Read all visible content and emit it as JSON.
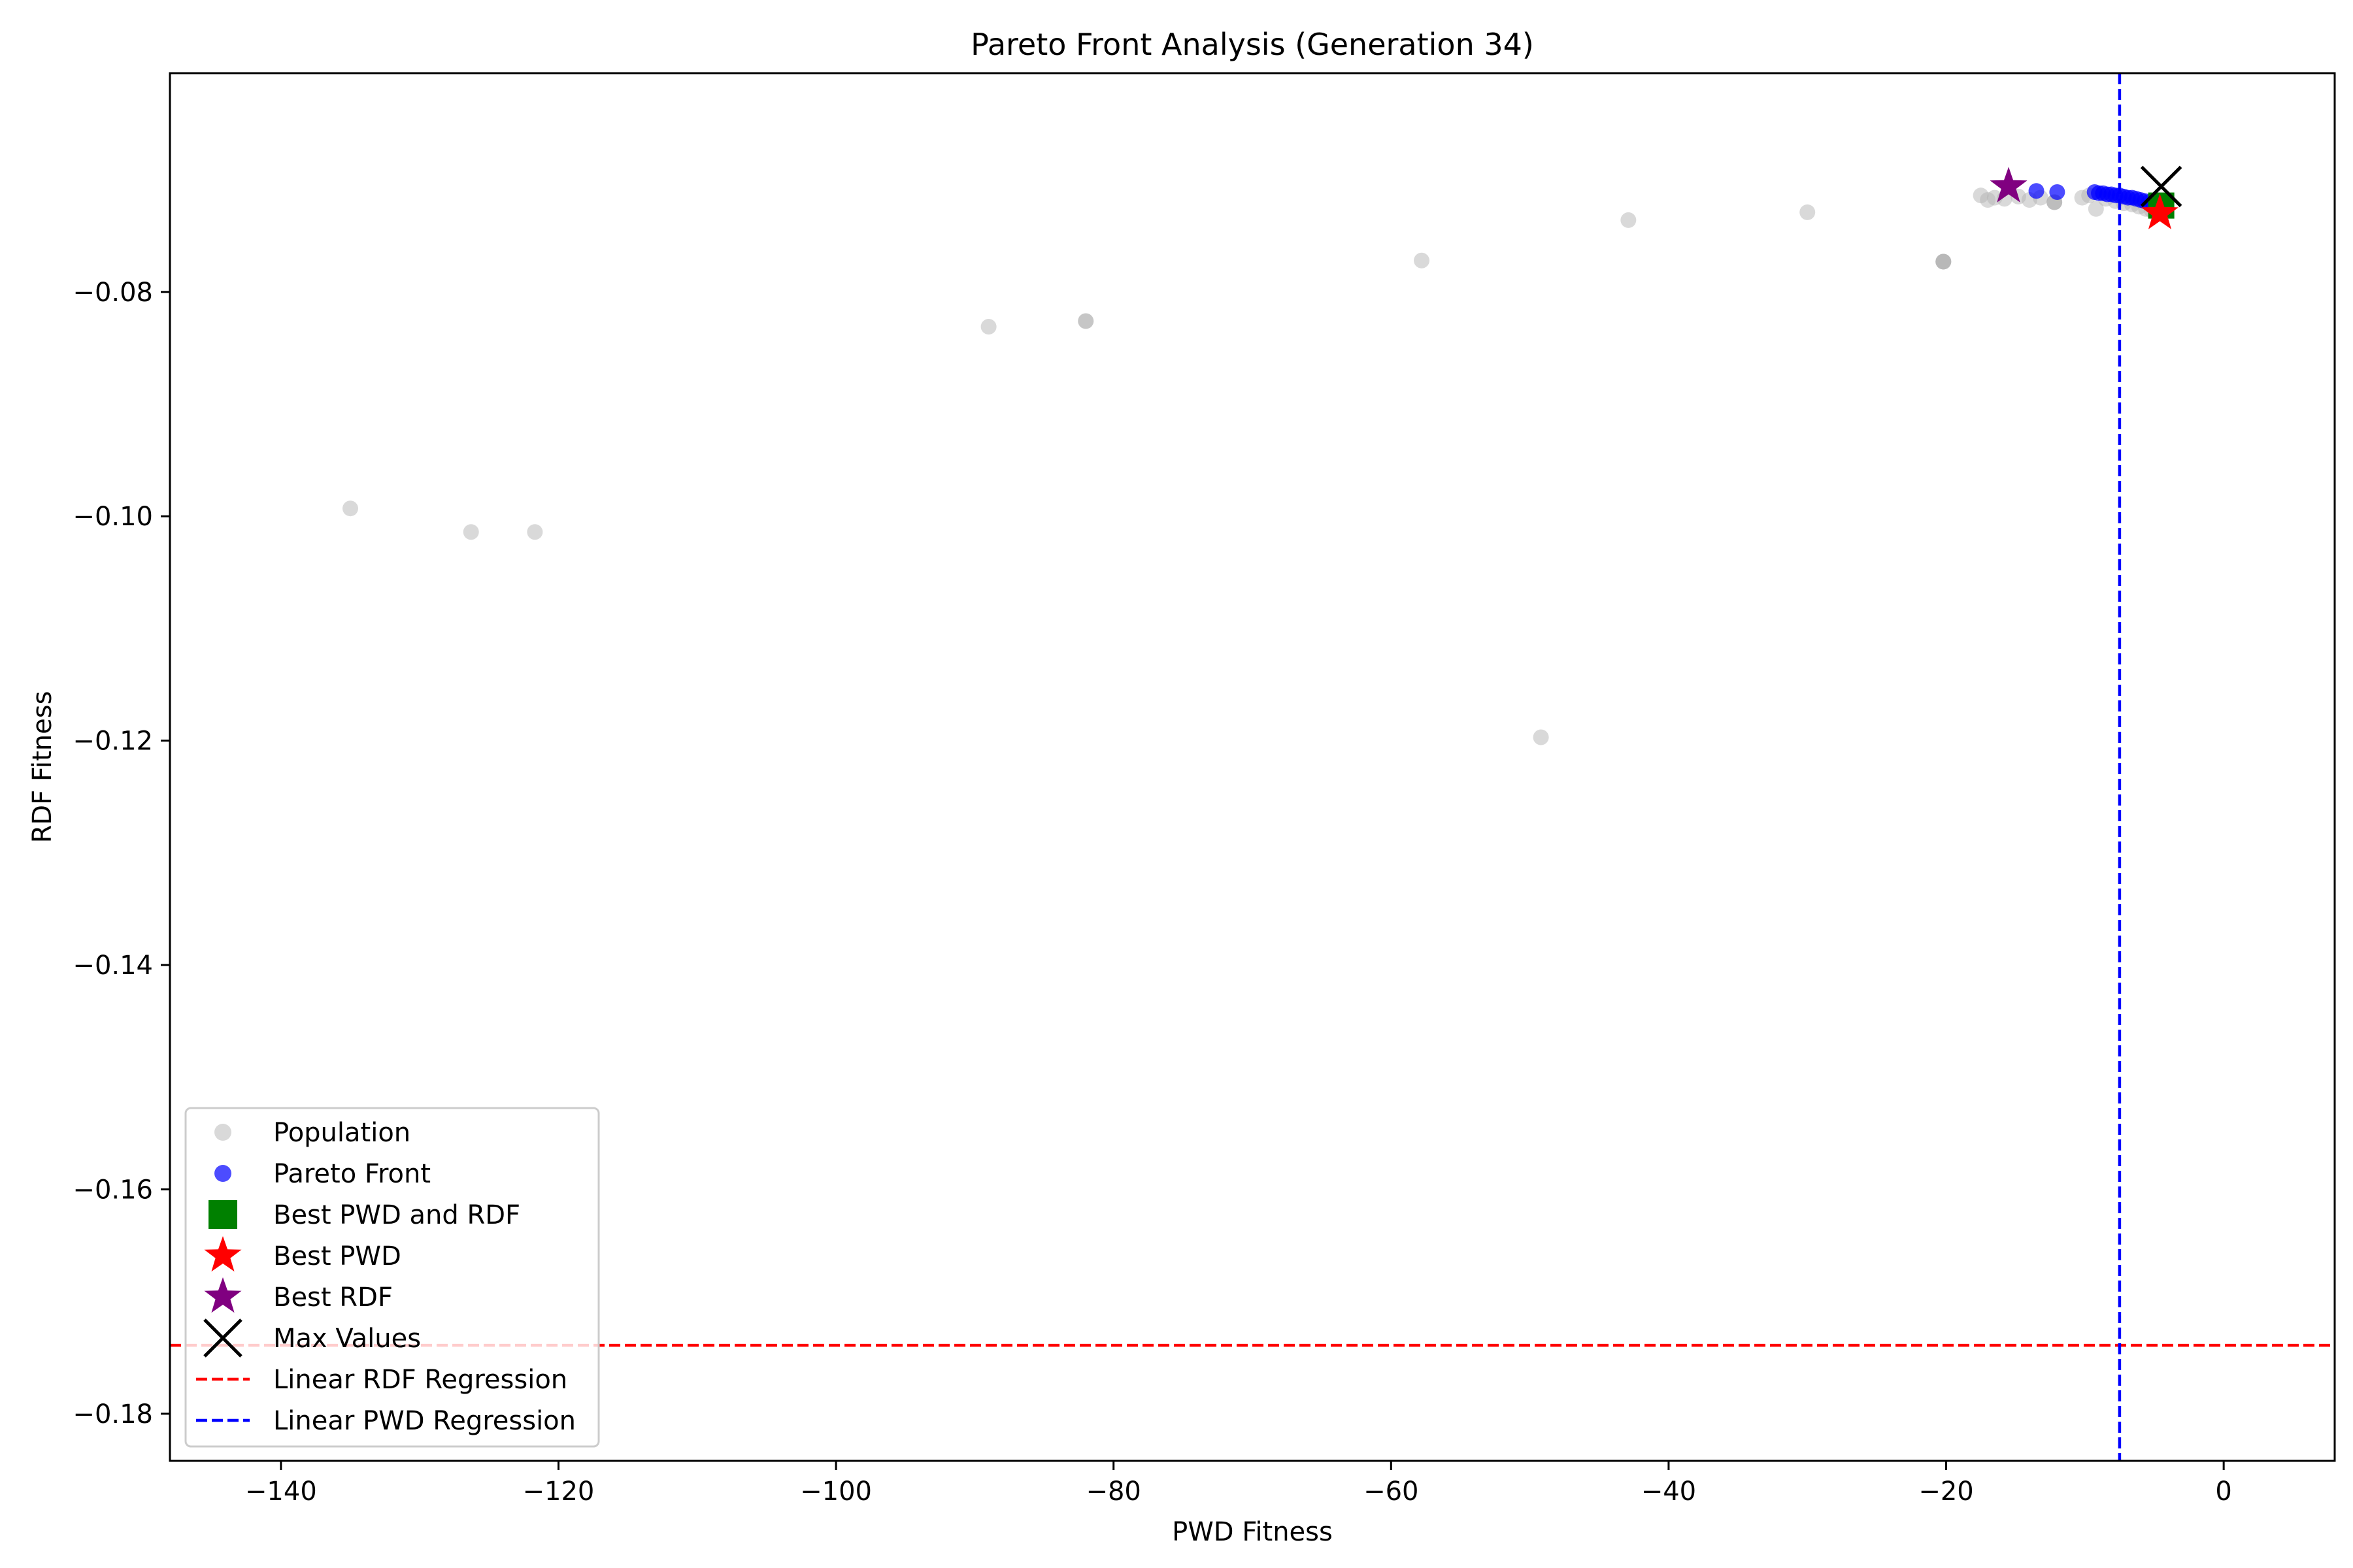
{
  "chart_data": {
    "type": "scatter",
    "title": "Pareto Front Analysis (Generation 34)",
    "xlabel": "PWD Fitness",
    "ylabel": "RDF Fitness",
    "xlim": [
      -148.0,
      8.0
    ],
    "ylim": [
      -0.1842,
      -0.0605
    ],
    "xticks": [
      -140,
      -120,
      -100,
      -80,
      -60,
      -40,
      -20,
      0
    ],
    "xtick_labels": [
      "−140",
      "−120",
      "−100",
      "−80",
      "−60",
      "−40",
      "−20",
      "0"
    ],
    "yticks": [
      -0.18,
      -0.16,
      -0.14,
      -0.12,
      -0.1,
      -0.08
    ],
    "ytick_labels": [
      "−0.18",
      "−0.16",
      "−0.14",
      "−0.12",
      "−0.10",
      "−0.08"
    ],
    "grid": false,
    "legend_position": "lower-left",
    "series": [
      {
        "name": "Population",
        "kind": "scatter",
        "marker": "circle",
        "color": "#b3b3b3",
        "opacity": 0.5,
        "points": [
          [
            -135.0,
            -0.0993
          ],
          [
            -126.3,
            -0.1014
          ],
          [
            -121.7,
            -0.1014
          ],
          [
            -89.0,
            -0.0831
          ],
          [
            -82.0,
            -0.0826
          ],
          [
            -82.0,
            -0.0826
          ],
          [
            -57.8,
            -0.0772
          ],
          [
            -49.2,
            -0.1197
          ],
          [
            -42.9,
            -0.0736
          ],
          [
            -30.0,
            -0.0729
          ],
          [
            -20.2,
            -0.0773
          ],
          [
            -20.2,
            -0.0773
          ],
          [
            -20.2,
            -0.0773
          ],
          [
            -20.2,
            -0.0773
          ],
          [
            -17.5,
            -0.0714
          ],
          [
            -17.0,
            -0.0718
          ],
          [
            -16.5,
            -0.0716
          ],
          [
            -15.8,
            -0.0717
          ],
          [
            -14.8,
            -0.0715
          ],
          [
            -14.0,
            -0.0718
          ],
          [
            -13.2,
            -0.0716
          ],
          [
            -12.2,
            -0.072
          ],
          [
            -12.2,
            -0.072
          ],
          [
            -12.2,
            -0.072
          ],
          [
            -10.2,
            -0.0716
          ],
          [
            -9.7,
            -0.0714
          ],
          [
            -9.2,
            -0.0726
          ],
          [
            -8.5,
            -0.0717
          ],
          [
            -7.8,
            -0.0719
          ],
          [
            -7.2,
            -0.0721
          ],
          [
            -6.6,
            -0.0722
          ],
          [
            -6.1,
            -0.0724
          ],
          [
            -5.6,
            -0.0726
          ],
          [
            -5.2,
            -0.0727
          ],
          [
            -4.8,
            -0.0727
          ],
          [
            -4.5,
            -0.0725
          ]
        ]
      },
      {
        "name": "Pareto Front",
        "kind": "scatter",
        "marker": "circle",
        "color": "#0000ff",
        "opacity": 0.7,
        "points": [
          [
            -15.5,
            -0.0706
          ],
          [
            -13.5,
            -0.071
          ],
          [
            -12.0,
            -0.0711
          ],
          [
            -9.3,
            -0.0711
          ],
          [
            -9.0,
            -0.0712
          ],
          [
            -8.7,
            -0.0712
          ],
          [
            -8.4,
            -0.0713
          ],
          [
            -8.1,
            -0.0713
          ],
          [
            -7.8,
            -0.0714
          ],
          [
            -7.5,
            -0.0714
          ],
          [
            -7.2,
            -0.0715
          ],
          [
            -6.9,
            -0.0716
          ],
          [
            -6.6,
            -0.0716
          ],
          [
            -6.3,
            -0.0717
          ],
          [
            -6.0,
            -0.0718
          ],
          [
            -5.7,
            -0.0719
          ],
          [
            -5.4,
            -0.072
          ],
          [
            -5.1,
            -0.0721
          ],
          [
            -4.8,
            -0.0723
          ],
          [
            -4.6,
            -0.0725
          ]
        ]
      },
      {
        "name": "Best PWD and RDF",
        "kind": "scatter",
        "marker": "square",
        "color": "#008000",
        "points": [
          [
            -4.5,
            -0.0723
          ]
        ]
      },
      {
        "name": "Best PWD",
        "kind": "scatter",
        "marker": "star",
        "color": "#ff0000",
        "points": [
          [
            -4.6,
            -0.073
          ]
        ]
      },
      {
        "name": "Best RDF",
        "kind": "scatter",
        "marker": "star",
        "color": "#800080",
        "points": [
          [
            -15.5,
            -0.0706
          ]
        ]
      },
      {
        "name": "Max Values",
        "kind": "scatter",
        "marker": "x",
        "color": "#000000",
        "points": [
          [
            -4.5,
            -0.0706
          ]
        ]
      },
      {
        "name": "Linear RDF Regression",
        "kind": "hline",
        "color": "#ff0000",
        "dash": "dashed",
        "y": -0.1739
      },
      {
        "name": "Linear PWD Regression",
        "kind": "vline",
        "color": "#0000ff",
        "dash": "dashed",
        "x": -7.5
      }
    ]
  }
}
